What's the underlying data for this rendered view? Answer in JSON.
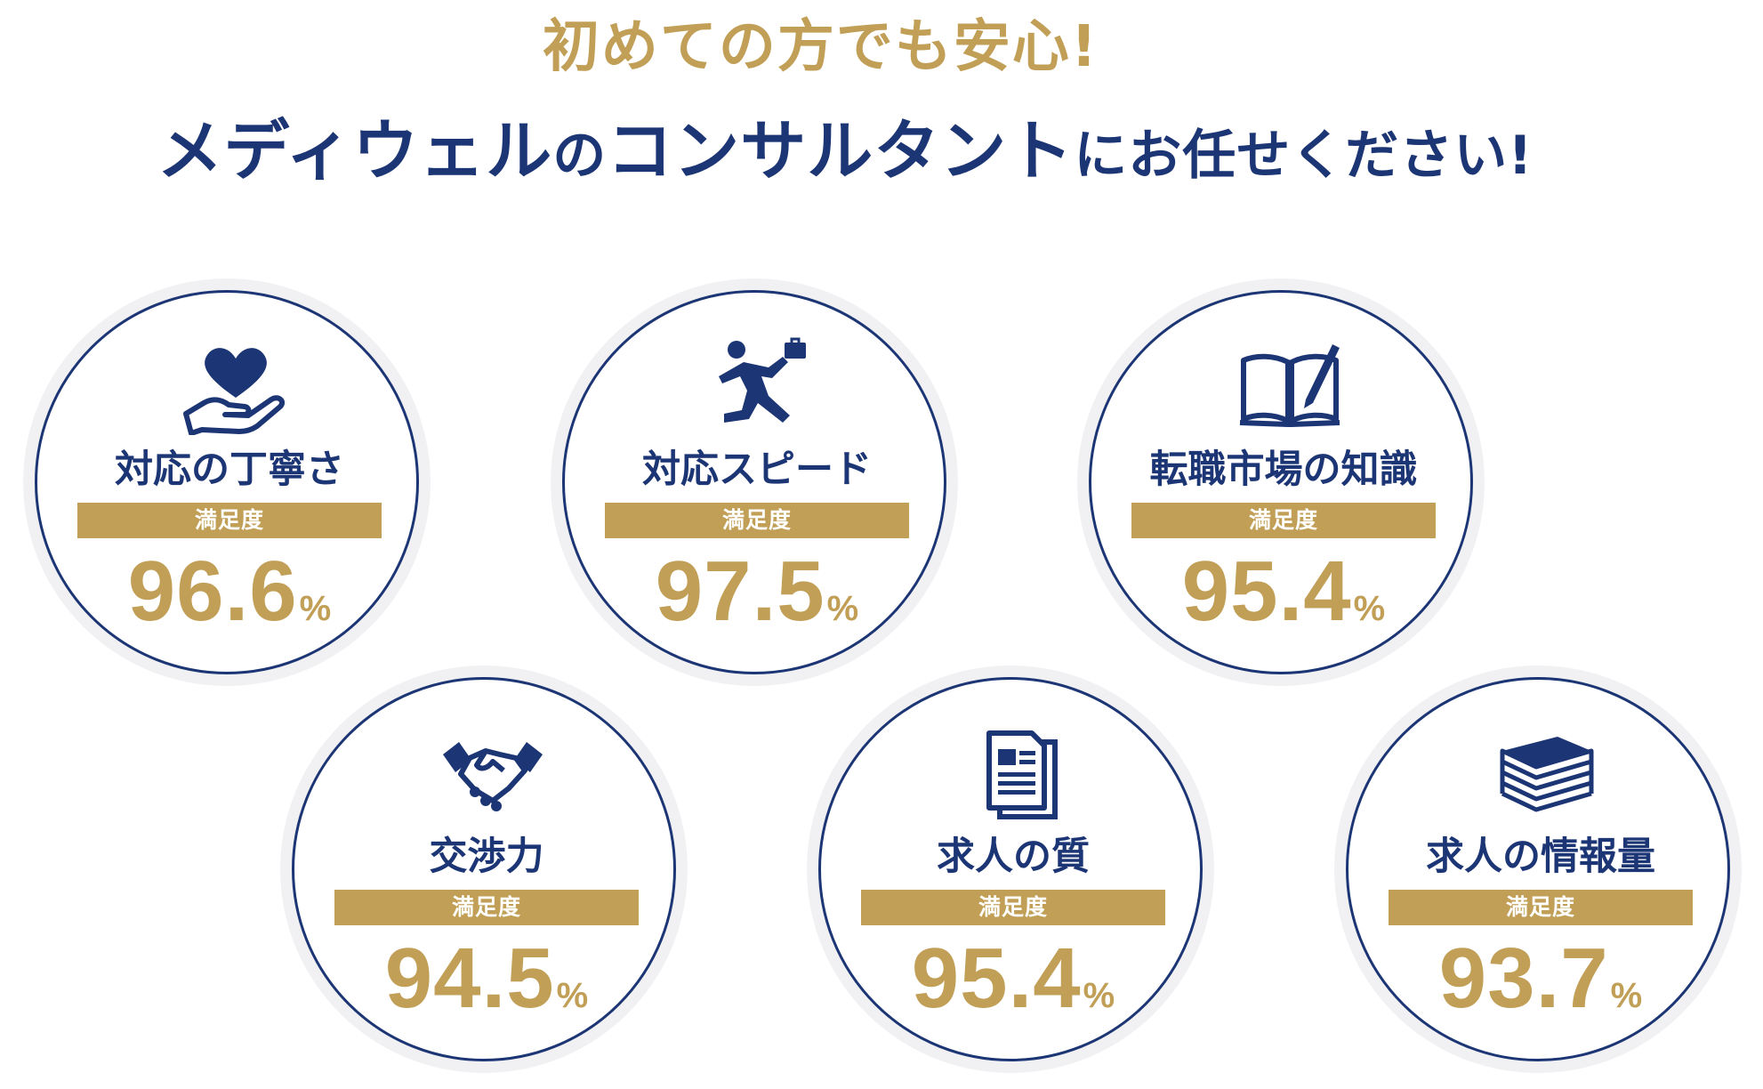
{
  "headline": {
    "line1": "初めての方でも安心!",
    "line2_parts": [
      "メディウェル",
      "の",
      "コンサルタント",
      "にお任せください!"
    ]
  },
  "colors": {
    "navy": "#1c3574",
    "gold": "#c19f57",
    "ring_shadow": "#f1f1f3"
  },
  "badges": [
    {
      "icon": "heart-hand-icon",
      "label": "対応の丁寧さ",
      "bar": "満足度",
      "value": "96.6",
      "unit": "%"
    },
    {
      "icon": "running-businessman-icon",
      "label": "対応スピード",
      "bar": "満足度",
      "value": "97.5",
      "unit": "%"
    },
    {
      "icon": "open-book-pen-icon",
      "label": "転職市場の知識",
      "bar": "満足度",
      "value": "95.4",
      "unit": "%"
    },
    {
      "icon": "handshake-icon",
      "label": "交渉力",
      "bar": "満足度",
      "value": "94.5",
      "unit": "%"
    },
    {
      "icon": "documents-icon",
      "label": "求人の質",
      "bar": "満足度",
      "value": "95.4",
      "unit": "%"
    },
    {
      "icon": "book-stack-icon",
      "label": "求人の情報量",
      "bar": "満足度",
      "value": "93.7",
      "unit": "%"
    }
  ]
}
